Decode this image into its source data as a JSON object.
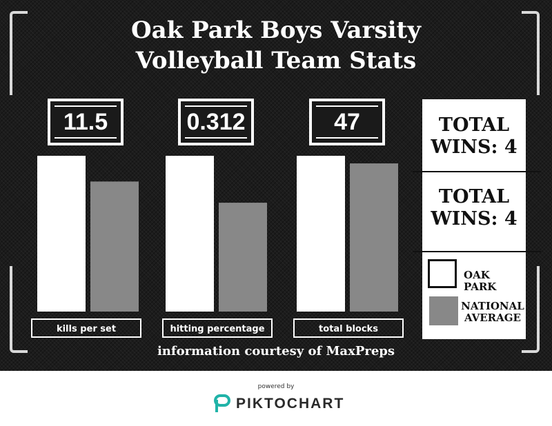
{
  "title_line1": "Oak Park Boys Varsity",
  "title_line2": "Volleyball Team Stats",
  "stats": [
    {
      "value": "11.5",
      "label": "kills per set"
    },
    {
      "value": "0.312",
      "label": "hitting percentage"
    },
    {
      "value": "47",
      "label": "total blocks"
    }
  ],
  "wins": {
    "box1": "TOTAL WINS: 4",
    "box2": "TOTAL WINS: 4"
  },
  "legend": {
    "oak_park": "OAK PARK",
    "national": "NATIONAL AVERAGE"
  },
  "source": "information courtesy of MaxPreps",
  "footer": {
    "powered_by": "powered by",
    "brand": "PIKTOCHART"
  },
  "colors": {
    "oak_park": "#ffffff",
    "national": "#888888",
    "background": "#1c1c1c"
  },
  "chart_data": {
    "type": "bar",
    "categories": [
      "kills per set",
      "hitting percentage",
      "total blocks"
    ],
    "series": [
      {
        "name": "OAK PARK",
        "values": [
          11.5,
          0.312,
          47
        ]
      },
      {
        "name": "NATIONAL AVERAGE",
        "values": [
          9.6,
          0.218,
          44.7
        ]
      }
    ],
    "title": "Oak Park Boys Varsity Volleyball Team Stats",
    "note": "each category scaled independently relative to Oak Park value"
  }
}
